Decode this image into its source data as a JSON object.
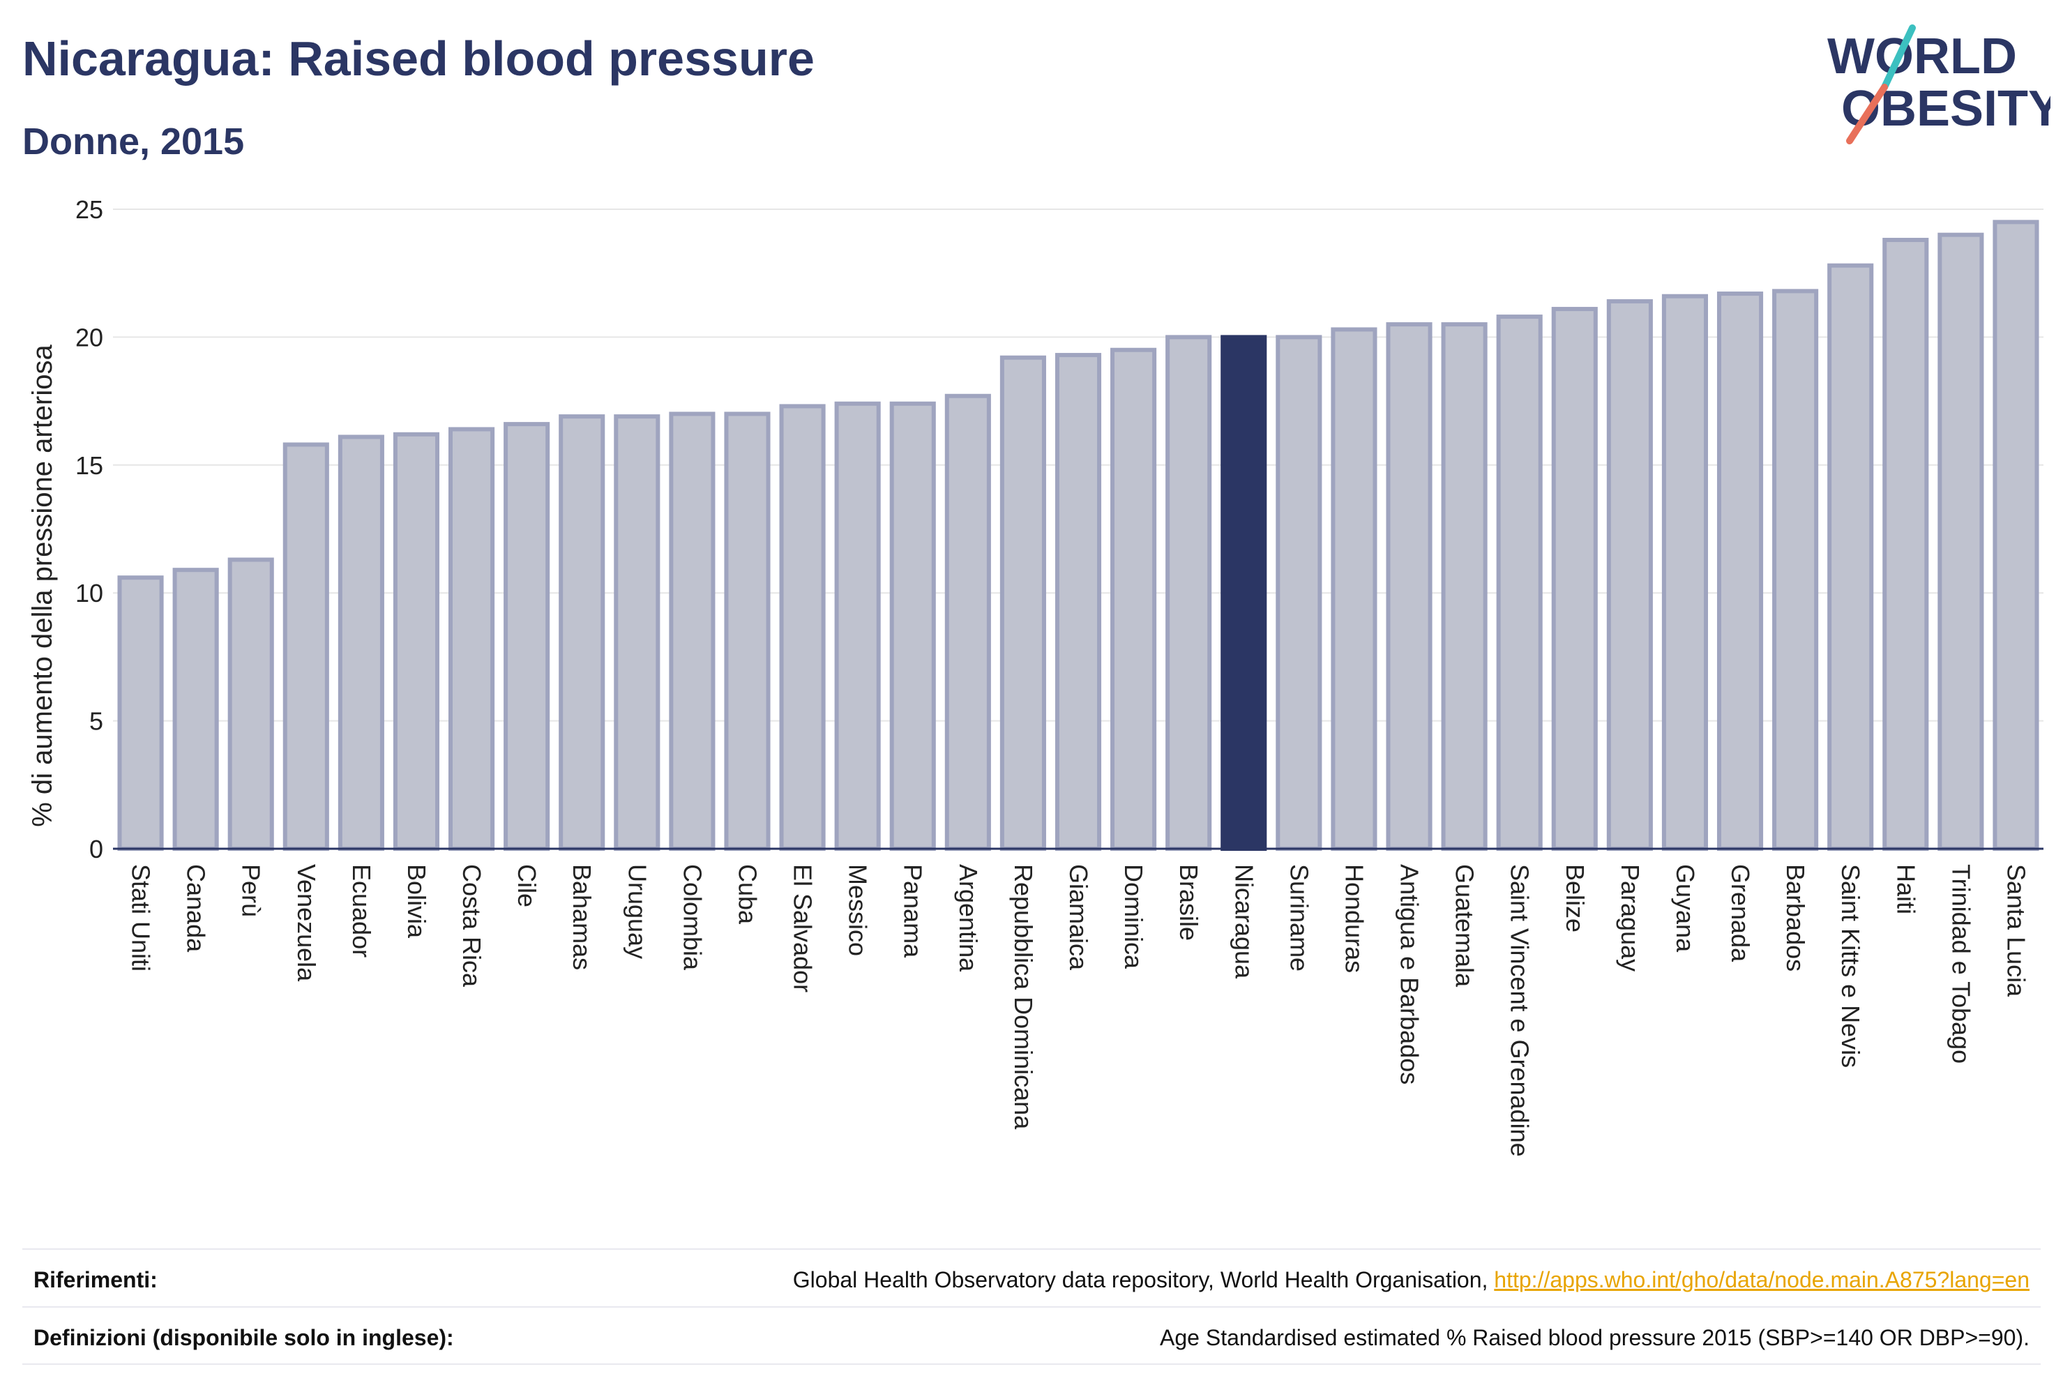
{
  "header": {
    "title": "Nicaragua: Raised blood pressure",
    "subtitle": "Donne, 2015"
  },
  "logo": {
    "line1": "WORLD",
    "line2": "OBESITY",
    "text_color": "#2b3664",
    "slash_colors": [
      "#3cc0c0",
      "#e8705a"
    ]
  },
  "chart_data": {
    "type": "bar",
    "ylabel": "% di aumento della pressione arteriosa",
    "xlabel": "",
    "ylim": [
      0,
      25
    ],
    "yticks": [
      0,
      5,
      10,
      15,
      20,
      25
    ],
    "grid": true,
    "highlight": "Nicaragua",
    "bar_color": "#bfc2cf",
    "bar_border_color": "#9fa4bf",
    "highlight_color": "#2b3664",
    "categories": [
      "Stati Uniti",
      "Canada",
      "Perù",
      "Venezuela",
      "Ecuador",
      "Bolivia",
      "Costa Rica",
      "Cile",
      "Bahamas",
      "Uruguay",
      "Colombia",
      "Cuba",
      "El Salvador",
      "Messico",
      "Panama",
      "Argentina",
      "Repubblica Dominicana",
      "Giamaica",
      "Dominica",
      "Brasile",
      "Nicaragua",
      "Suriname",
      "Honduras",
      "Antigua e Barbados",
      "Guatemala",
      "Saint Vincent e Grenadine",
      "Belize",
      "Paraguay",
      "Guyana",
      "Grenada",
      "Barbados",
      "Saint Kitts e Nevis",
      "Haiti",
      "Trinidad e Tobago",
      "Santa Lucia"
    ],
    "values": [
      10.6,
      10.9,
      11.3,
      15.8,
      16.1,
      16.2,
      16.4,
      16.6,
      16.9,
      16.9,
      17.0,
      17.0,
      17.3,
      17.4,
      17.4,
      17.7,
      19.2,
      19.3,
      19.5,
      20.0,
      20.0,
      20.0,
      20.3,
      20.5,
      20.5,
      20.8,
      21.1,
      21.4,
      21.6,
      21.7,
      21.8,
      22.8,
      23.8,
      24.0,
      24.5
    ]
  },
  "footer": {
    "references_label": "Riferimenti:",
    "references_text": "Global Health Observatory data repository, World Health Organisation, ",
    "references_link": "http://apps.who.int/gho/data/node.main.A875?lang=en",
    "definitions_label": "Definizioni (disponibile solo in inglese):",
    "definitions_text": "Age Standardised estimated % Raised blood pressure 2015 (SBP>=140 OR DBP>=90)."
  }
}
